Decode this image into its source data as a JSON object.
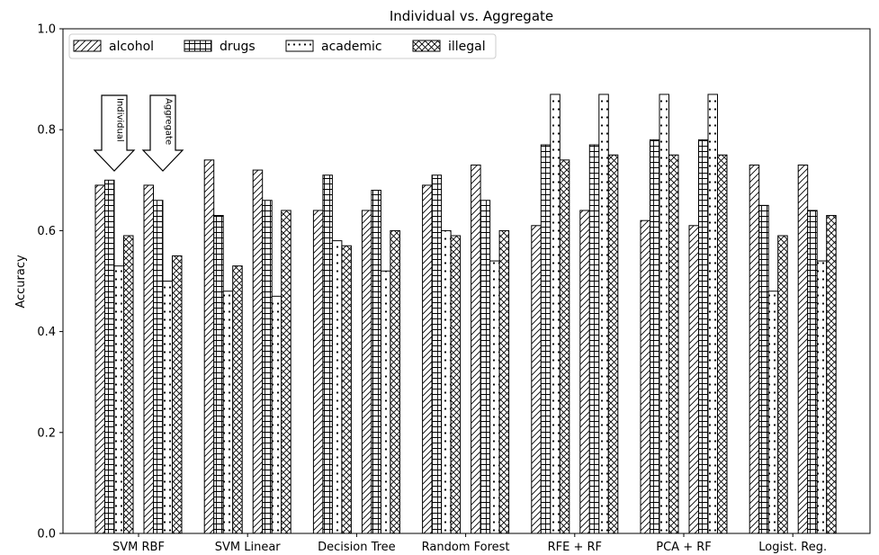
{
  "chart_data": {
    "type": "bar",
    "title": "Individual vs. Aggregate",
    "xlabel": "",
    "ylabel": "Accuracy",
    "ylim": [
      0,
      1.0
    ],
    "yticks": [
      "0.0",
      "0.2",
      "0.4",
      "0.6",
      "0.8",
      "1.0"
    ],
    "categories": [
      "SVM RBF",
      "SVM Linear",
      "Decision Tree",
      "Random Forest",
      "RFE + RF",
      "PCA + RF",
      "Logist. Reg."
    ],
    "subgroups": [
      "Individual",
      "Aggregate"
    ],
    "legend_position": "upper-left",
    "grid": false,
    "series": [
      {
        "name": "alcohol",
        "hatch": "diagonal",
        "individual": [
          0.69,
          0.74,
          0.64,
          0.69,
          0.61,
          0.62,
          0.73
        ],
        "aggregate": [
          0.69,
          0.72,
          0.64,
          0.73,
          0.64,
          0.61,
          0.73
        ]
      },
      {
        "name": "drugs",
        "hatch": "grid",
        "individual": [
          0.7,
          0.63,
          0.71,
          0.71,
          0.77,
          0.78,
          0.65
        ],
        "aggregate": [
          0.66,
          0.66,
          0.68,
          0.66,
          0.77,
          0.78,
          0.64
        ]
      },
      {
        "name": "academic",
        "hatch": "dots",
        "individual": [
          0.53,
          0.48,
          0.58,
          0.6,
          0.87,
          0.87,
          0.48
        ],
        "aggregate": [
          0.5,
          0.47,
          0.52,
          0.54,
          0.87,
          0.87,
          0.54
        ]
      },
      {
        "name": "illegal",
        "hatch": "crosshatch",
        "individual": [
          0.59,
          0.53,
          0.57,
          0.59,
          0.74,
          0.75,
          0.59
        ],
        "aggregate": [
          0.55,
          0.64,
          0.6,
          0.6,
          0.75,
          0.75,
          0.63
        ]
      }
    ],
    "annotations": [
      {
        "text": "Individual",
        "category": "SVM RBF",
        "subgroup": "Individual"
      },
      {
        "text": "Aggregate",
        "category": "SVM RBF",
        "subgroup": "Aggregate"
      }
    ]
  }
}
